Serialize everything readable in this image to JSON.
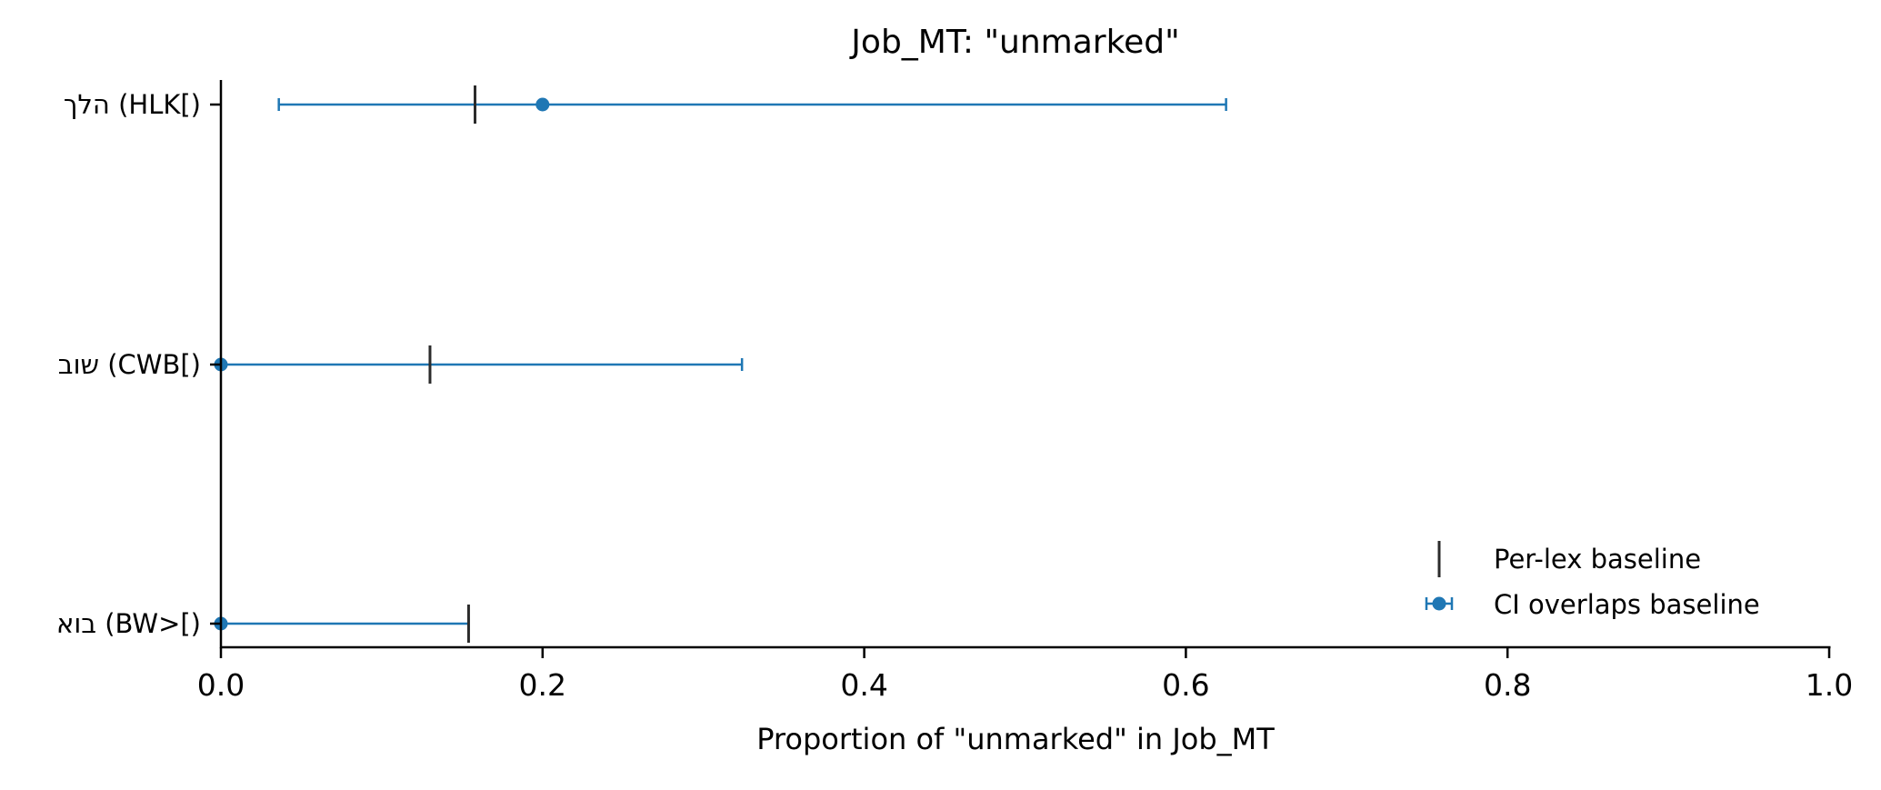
{
  "chart_data": {
    "type": "errorbar",
    "title": "Job_MT: \"unmarked\"",
    "xlabel": "Proportion of \"unmarked\" in Job_MT",
    "ylabel": "",
    "xlim": [
      0.0,
      1.0
    ],
    "xticks": [
      "0.0",
      "0.2",
      "0.4",
      "0.6",
      "0.8",
      "1.0"
    ],
    "grid": false,
    "legend_position": "lower-right",
    "colors": {
      "ci": "#1f77b4",
      "baseline": "#2b2b2b"
    },
    "categories": [
      "הלך (HLK[)",
      "שוב (CWB[)",
      "בוא (BW>[)"
    ],
    "series": [
      {
        "name": "Per-lex baseline",
        "marker": "vertical-line",
        "values": [
          0.158,
          0.13,
          0.154
        ]
      },
      {
        "name": "CI overlaps baseline",
        "marker": "point-with-ci",
        "values": [
          0.2,
          0.0,
          0.0
        ],
        "ci_low": [
          0.036,
          0.0,
          0.0
        ],
        "ci_high": [
          0.625,
          0.324,
          0.154
        ]
      }
    ]
  }
}
